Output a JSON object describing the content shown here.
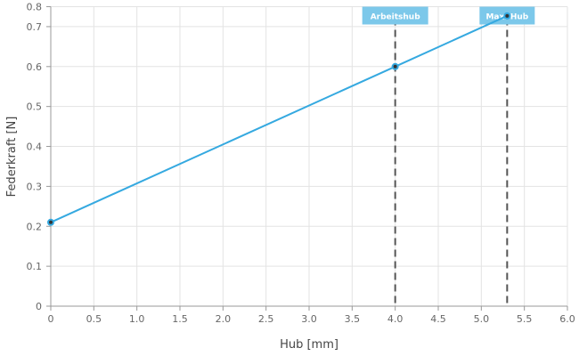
{
  "chart_data": {
    "type": "line",
    "xlabel": "Hub [mm]",
    "ylabel": "Federkraft [N]",
    "xlim": [
      0,
      6
    ],
    "ylim": [
      0,
      0.75
    ],
    "xticks": [
      0,
      0.5,
      1.0,
      1.5,
      2.0,
      2.5,
      3.0,
      3.5,
      4.0,
      4.5,
      5.0,
      5.5,
      6.0
    ],
    "xtick_labels": [
      "0",
      "0.5",
      "1.0",
      "1.5",
      "2.0",
      "2.5",
      "3.0",
      "3.5",
      "4.0",
      "4.5",
      "5.0",
      "5.5",
      "6.0"
    ],
    "yticks": [
      0,
      0.1,
      0.2,
      0.3,
      0.4,
      0.5,
      0.6,
      0.7,
      0.75
    ],
    "ytick_labels": [
      "0",
      "0.1",
      "0.2",
      "0.3",
      "0.4",
      "0.5",
      "0.6",
      "0.7",
      "0.8"
    ],
    "grid": true,
    "series": [
      {
        "color": "#35a9e0",
        "x": [
          0,
          4.0,
          5.3
        ],
        "y": [
          0.21,
          0.6,
          0.727
        ]
      }
    ],
    "markers": [
      {
        "label": "Arbeitshub",
        "x": 4.0
      },
      {
        "label": "Max. Hub",
        "x": 5.3
      }
    ],
    "marker_label_color": "#7cc8ea",
    "marker_line_color": "#555555"
  }
}
